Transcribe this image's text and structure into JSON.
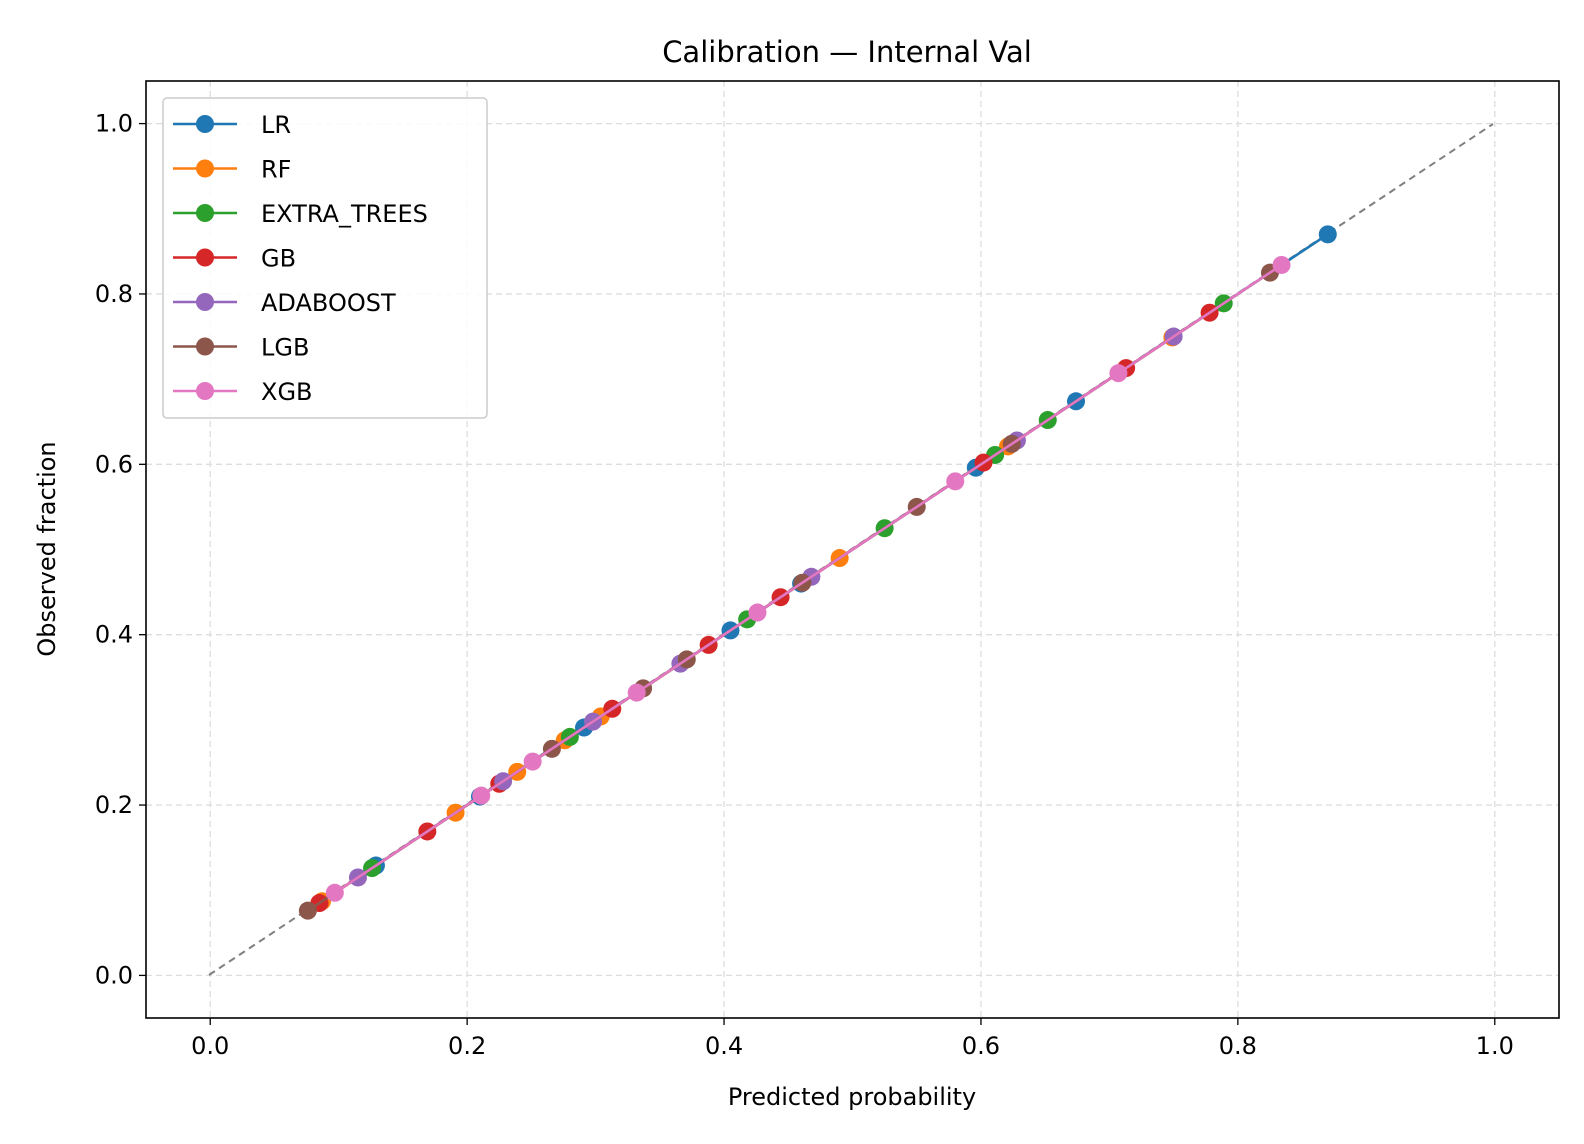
{
  "chart_data": {
    "type": "line",
    "title": "Calibration — Internal Val",
    "xlabel": "Predicted probability",
    "ylabel": "Observed fraction",
    "xlim": [
      -0.05,
      1.05
    ],
    "ylim": [
      -0.05,
      1.05
    ],
    "xticks": [
      "0.0",
      "0.2",
      "0.4",
      "0.6",
      "0.8",
      "1.0"
    ],
    "yticks": [
      "0.0",
      "0.2",
      "0.4",
      "0.6",
      "0.8",
      "1.0"
    ],
    "grid": true,
    "legend_position": "upper-left",
    "reference_line": {
      "x": [
        0,
        1
      ],
      "y": [
        0,
        1
      ],
      "style": "dashed",
      "color": "#808080"
    },
    "series": [
      {
        "name": "LR",
        "color": "#1f77b4",
        "x": [
          0.129,
          0.21,
          0.291,
          0.405,
          0.46,
          0.596,
          0.674,
          0.87
        ],
        "y": [
          0.129,
          0.21,
          0.291,
          0.405,
          0.46,
          0.596,
          0.674,
          0.87
        ]
      },
      {
        "name": "RF",
        "color": "#ff7f0e",
        "x": [
          0.087,
          0.191,
          0.239,
          0.276,
          0.304,
          0.49,
          0.621,
          0.749
        ],
        "y": [
          0.087,
          0.191,
          0.239,
          0.276,
          0.304,
          0.49,
          0.621,
          0.749
        ]
      },
      {
        "name": "EXTRA_TREES",
        "color": "#2ca02c",
        "x": [
          0.126,
          0.28,
          0.418,
          0.525,
          0.611,
          0.652,
          0.789
        ],
        "y": [
          0.126,
          0.28,
          0.418,
          0.525,
          0.611,
          0.652,
          0.789
        ]
      },
      {
        "name": "GB",
        "color": "#d62728",
        "x": [
          0.085,
          0.169,
          0.225,
          0.313,
          0.388,
          0.444,
          0.602,
          0.713,
          0.778
        ],
        "y": [
          0.085,
          0.169,
          0.225,
          0.313,
          0.388,
          0.444,
          0.602,
          0.713,
          0.778
        ]
      },
      {
        "name": "ADABOOST",
        "color": "#9467bd",
        "x": [
          0.115,
          0.228,
          0.298,
          0.366,
          0.468,
          0.628,
          0.75
        ],
        "y": [
          0.115,
          0.228,
          0.298,
          0.366,
          0.468,
          0.628,
          0.75
        ]
      },
      {
        "name": "LGB",
        "color": "#8c564b",
        "x": [
          0.076,
          0.266,
          0.337,
          0.371,
          0.461,
          0.55,
          0.624,
          0.825
        ],
        "y": [
          0.076,
          0.266,
          0.337,
          0.371,
          0.461,
          0.55,
          0.624,
          0.825
        ]
      },
      {
        "name": "XGB",
        "color": "#e377c2",
        "x": [
          0.097,
          0.211,
          0.251,
          0.332,
          0.426,
          0.58,
          0.707,
          0.834
        ],
        "y": [
          0.097,
          0.211,
          0.251,
          0.332,
          0.426,
          0.58,
          0.707,
          0.834
        ]
      }
    ]
  }
}
